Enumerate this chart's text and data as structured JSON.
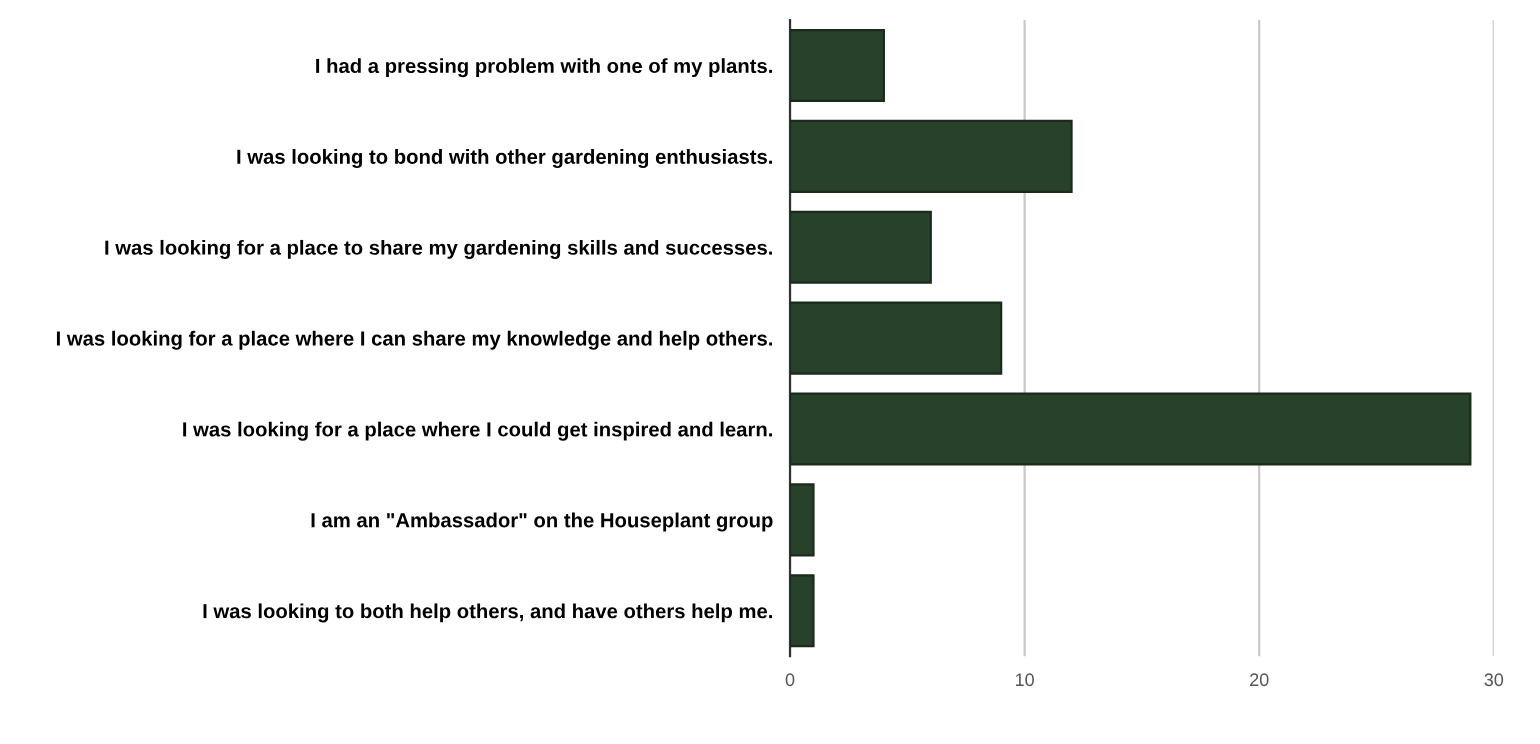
{
  "chart_data": {
    "type": "bar",
    "orientation": "horizontal",
    "categories": [
      "I had a pressing problem with one of my plants.",
      "I was looking to bond with other gardening enthusiasts.",
      "I was looking for a place to share my gardening skills and successes.",
      "I was looking for a place where I can share my knowledge and help others.",
      "I was looking for a place where I could get inspired and learn.",
      "I am an \"Ambassador\" on the Houseplant group",
      "I was looking to both help others, and have others help me."
    ],
    "values": [
      4,
      12,
      6,
      9,
      29,
      1,
      1
    ],
    "color": "#27412b",
    "xlim": [
      0,
      30
    ],
    "xticks": [
      0,
      10,
      20,
      30
    ],
    "grid": "x"
  }
}
